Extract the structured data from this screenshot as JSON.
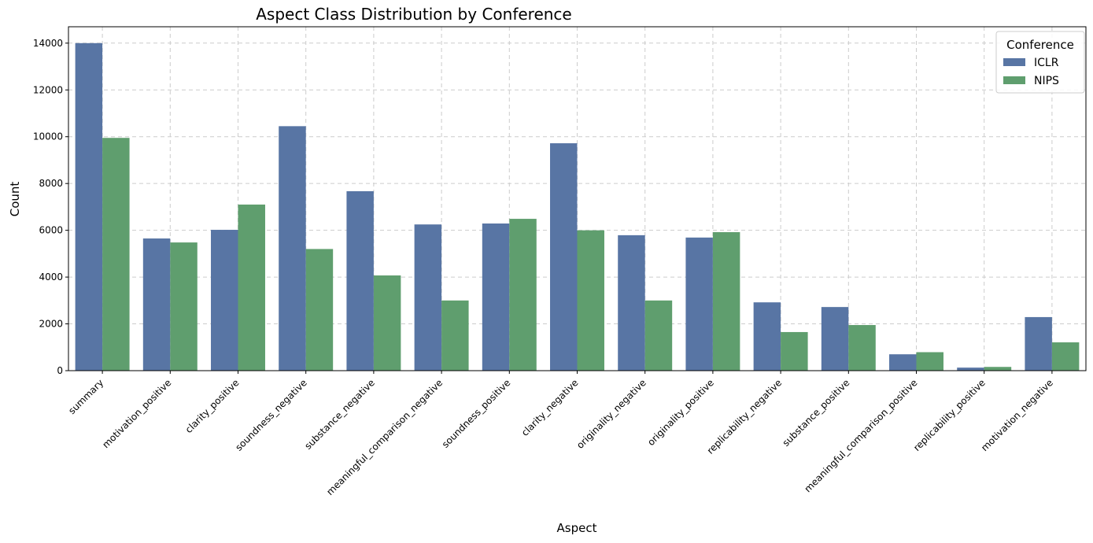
{
  "chart_data": {
    "type": "bar",
    "title": "Aspect Class Distribution by Conference",
    "xlabel": "Aspect",
    "ylabel": "Count",
    "ylim": [
      0,
      14700
    ],
    "yticks": [
      0,
      2000,
      4000,
      6000,
      8000,
      10000,
      12000,
      14000
    ],
    "grid": true,
    "legend_title": "Conference",
    "legend_position": "top-right",
    "categories": [
      "summary",
      "motivation_positive",
      "clarity_positive",
      "soundness_negative",
      "substance_negative",
      "meaningful_comparison_negative",
      "soundness_positive",
      "clarity_negative",
      "originality_negative",
      "originality_positive",
      "replicability_negative",
      "substance_positive",
      "meaningful_comparison_positive",
      "replicability_positive",
      "motivation_negative"
    ],
    "series": [
      {
        "name": "ICLR",
        "color": "#5875a4",
        "values": [
          14000,
          5650,
          6020,
          10450,
          7670,
          6250,
          6290,
          9720,
          5790,
          5690,
          2920,
          2720,
          700,
          130,
          2290
        ]
      },
      {
        "name": "NIPS",
        "color": "#5f9e6e",
        "values": [
          9950,
          5480,
          7100,
          5200,
          4070,
          3000,
          6490,
          6000,
          3000,
          5920,
          1650,
          1950,
          790,
          160,
          1210
        ]
      }
    ]
  }
}
